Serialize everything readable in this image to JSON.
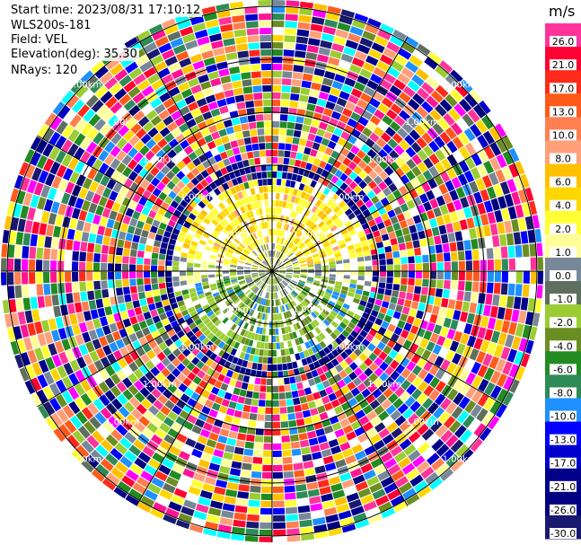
{
  "info": {
    "start_time": "Start time: 2023/08/31 17:10:12",
    "instrument": "WLS200s-181",
    "field": "Field: VEL",
    "elevation": "Elevation(deg): 35.30",
    "nrays": "NRays: 120"
  },
  "chart_data": {
    "type": "heatmap",
    "subtype": "ppi-polar",
    "field": "VEL",
    "n_rays": 120,
    "range_rings_km": [
      {
        "label": "1.00km",
        "value": 1
      },
      {
        "label": "2.00km",
        "value": 2
      },
      {
        "label": "3.00km",
        "value": 3
      },
      {
        "label": "4.00km",
        "value": 4
      },
      {
        "label": "5.00km",
        "value": 5
      }
    ],
    "range_label_text": "1.00km",
    "colorbar": {
      "unit": "m/s",
      "ticks": [
        "26.0",
        "21.0",
        "17.0",
        "13.0",
        "10.0",
        "8.0",
        "6.0",
        "4.0",
        "2.0",
        "1.0",
        "0.0",
        "-1.0",
        "-2.0",
        "-4.0",
        "-6.0",
        "-8.0",
        "-10.0",
        "-13.0",
        "-17.0",
        "-21.0",
        "-26.0",
        "-30.0"
      ],
      "colors": [
        "#ff3399",
        "#ff0033",
        "#ff2a1a",
        "#ff5a1a",
        "#ff7f50",
        "#ffa07a",
        "#ffc000",
        "#ffd700",
        "#ffff33",
        "#ffff99",
        "#778899",
        "#5f6f5f",
        "#9acd32",
        "#6b8e23",
        "#228b22",
        "#2e8b57",
        "#1e90ff",
        "#0000ff",
        "#0000cd",
        "#00008b",
        "#000080",
        "#191970"
      ]
    },
    "near_field": {
      "north": "positive 1–8 m/s (yellow/orange)",
      "south": "negative -2 to -10 m/s (green/blue)",
      "far": "noise across full scale"
    }
  }
}
